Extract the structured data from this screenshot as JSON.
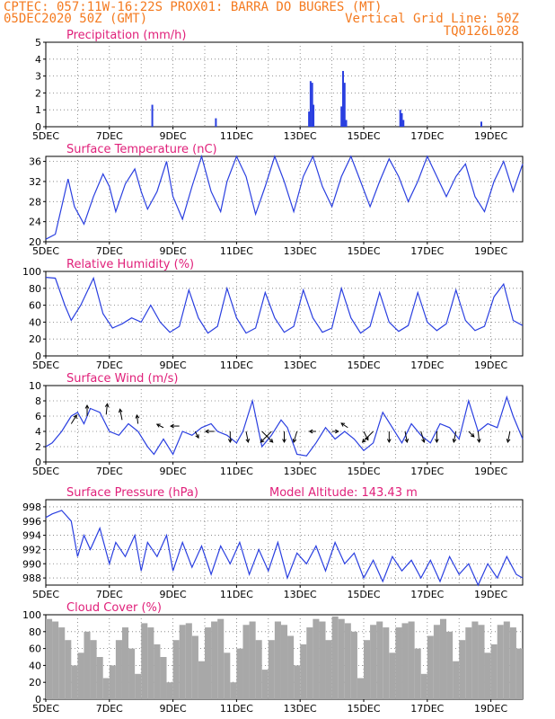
{
  "header": {
    "line1_left": "CPTEC:   057:11W-16:22S   PROX01: BARRA DO BUGRES (MT)",
    "line2_left": "05DEC2020 50Z (GMT)",
    "line2_right": "Vertical Grid Line: 50Z",
    "line3_right": "TQ0126L028"
  },
  "colors": {
    "header": "#f47a1f",
    "title": "#e0207a",
    "line": "#2a3fe0",
    "bar": "#2a3fe0",
    "cloud": "#a8a8a8",
    "grid": "#777777"
  },
  "x_tick_labels": [
    "5DEC",
    "7DEC",
    "9DEC",
    "11DEC",
    "13DEC",
    "15DEC",
    "17DEC",
    "19DEC"
  ],
  "chart_data": [
    {
      "type": "bar",
      "title": "Precipitation (mm/h)",
      "ylim": [
        0,
        5
      ],
      "yticks": [
        0,
        1,
        2,
        3,
        4,
        5
      ],
      "xlim": [
        5,
        20
      ],
      "bars": [
        {
          "x": 8.35,
          "y": 1.3
        },
        {
          "x": 10.35,
          "y": 0.5
        },
        {
          "x": 13.28,
          "y": 0.9
        },
        {
          "x": 13.33,
          "y": 2.7
        },
        {
          "x": 13.38,
          "y": 2.6
        },
        {
          "x": 13.42,
          "y": 1.3
        },
        {
          "x": 14.3,
          "y": 1.2
        },
        {
          "x": 14.35,
          "y": 3.3
        },
        {
          "x": 14.4,
          "y": 2.6
        },
        {
          "x": 14.45,
          "y": 0.4
        },
        {
          "x": 16.15,
          "y": 1.0
        },
        {
          "x": 16.2,
          "y": 0.8
        },
        {
          "x": 16.25,
          "y": 0.4
        },
        {
          "x": 18.7,
          "y": 0.3
        }
      ]
    },
    {
      "type": "line",
      "title": "Surface Temperature (nC)",
      "ylim": [
        20,
        37
      ],
      "yticks": [
        20,
        24,
        28,
        32,
        36
      ],
      "xlim": [
        5,
        20
      ],
      "x": [
        5.0,
        5.3,
        5.5,
        5.7,
        5.9,
        6.2,
        6.5,
        6.8,
        7.0,
        7.2,
        7.5,
        7.8,
        8.0,
        8.2,
        8.5,
        8.8,
        9.0,
        9.3,
        9.6,
        9.9,
        10.2,
        10.5,
        10.7,
        11.0,
        11.3,
        11.6,
        11.9,
        12.2,
        12.5,
        12.8,
        13.1,
        13.4,
        13.7,
        14.0,
        14.3,
        14.6,
        14.9,
        15.2,
        15.5,
        15.8,
        16.1,
        16.4,
        16.7,
        17.0,
        17.3,
        17.6,
        17.9,
        18.2,
        18.5,
        18.8,
        19.1,
        19.4,
        19.7,
        20.0
      ],
      "y": [
        20.5,
        21.5,
        27,
        32.5,
        27,
        23.5,
        29,
        33.5,
        31,
        26,
        31.5,
        34.5,
        30,
        26.5,
        30,
        36,
        29,
        24.5,
        31,
        37,
        30,
        26,
        32,
        37,
        33,
        25.5,
        31,
        37,
        32,
        26,
        33,
        37,
        31,
        27,
        33,
        37,
        32,
        27,
        32,
        36.5,
        33,
        28,
        32,
        37,
        33,
        29,
        33,
        35.5,
        29,
        26,
        32,
        36,
        30,
        35.5
      ]
    },
    {
      "type": "line",
      "title": "Relative Humidity (%)",
      "ylim": [
        0,
        100
      ],
      "yticks": [
        0,
        20,
        40,
        60,
        80,
        100
      ],
      "xlim": [
        5,
        20
      ],
      "x": [
        5.0,
        5.3,
        5.6,
        5.8,
        6.1,
        6.5,
        6.8,
        7.1,
        7.4,
        7.7,
        8.0,
        8.3,
        8.6,
        8.9,
        9.2,
        9.5,
        9.8,
        10.1,
        10.4,
        10.7,
        11.0,
        11.3,
        11.6,
        11.9,
        12.2,
        12.5,
        12.8,
        13.1,
        13.4,
        13.7,
        14.0,
        14.3,
        14.6,
        14.9,
        15.2,
        15.5,
        15.8,
        16.1,
        16.4,
        16.7,
        17.0,
        17.3,
        17.6,
        17.9,
        18.2,
        18.5,
        18.8,
        19.1,
        19.4,
        19.7,
        20.0
      ],
      "y": [
        93,
        92,
        60,
        42,
        60,
        92,
        50,
        33,
        38,
        45,
        40,
        60,
        40,
        28,
        35,
        78,
        45,
        27,
        35,
        80,
        45,
        27,
        33,
        75,
        45,
        28,
        35,
        78,
        45,
        28,
        33,
        80,
        45,
        27,
        35,
        75,
        40,
        29,
        36,
        75,
        40,
        30,
        38,
        78,
        42,
        30,
        35,
        70,
        85,
        42,
        36
      ]
    },
    {
      "type": "line",
      "title": "Surface Wind (m/s)",
      "ylim": [
        0,
        10
      ],
      "yticks": [
        0,
        2,
        4,
        6,
        8,
        10
      ],
      "xlim": [
        5,
        20
      ],
      "x": [
        5.0,
        5.2,
        5.5,
        5.8,
        6.0,
        6.2,
        6.4,
        6.7,
        7.0,
        7.3,
        7.6,
        7.9,
        8.2,
        8.4,
        8.7,
        9.0,
        9.3,
        9.6,
        9.9,
        10.2,
        10.4,
        10.7,
        11.0,
        11.2,
        11.5,
        11.8,
        12.1,
        12.4,
        12.6,
        12.9,
        13.2,
        13.5,
        13.8,
        14.1,
        14.4,
        14.7,
        15.0,
        15.3,
        15.6,
        15.9,
        16.2,
        16.5,
        16.8,
        17.1,
        17.4,
        17.7,
        18.0,
        18.3,
        18.6,
        18.9,
        19.2,
        19.5,
        19.7,
        20.0
      ],
      "y": [
        2.0,
        2.5,
        4.0,
        6.0,
        6.5,
        5.0,
        7.0,
        6.5,
        4.0,
        3.5,
        5.0,
        4.0,
        2.0,
        1.0,
        3.0,
        1.0,
        4.0,
        3.5,
        4.5,
        5.0,
        4.0,
        3.5,
        2.5,
        4.0,
        8.0,
        2.0,
        3.5,
        5.5,
        4.5,
        1.0,
        0.8,
        2.5,
        4.5,
        3.0,
        4.0,
        3.0,
        1.5,
        2.5,
        6.5,
        4.5,
        2.5,
        5.0,
        3.5,
        2.5,
        5.0,
        4.5,
        3.0,
        8.0,
        4.0,
        5.0,
        4.5,
        8.5,
        6.0,
        3.0
      ],
      "wind_vectors": [
        {
          "x": 5.8,
          "y": 5.0,
          "u": 0.5,
          "v": 0.8
        },
        {
          "x": 6.3,
          "y": 6.0,
          "u": 0.0,
          "v": 1.0
        },
        {
          "x": 6.9,
          "y": 6.2,
          "u": 0.1,
          "v": 1.0
        },
        {
          "x": 7.4,
          "y": 5.5,
          "u": -0.2,
          "v": 1.0
        },
        {
          "x": 7.9,
          "y": 5.0,
          "u": -0.1,
          "v": 0.8
        },
        {
          "x": 8.7,
          "y": 4.5,
          "u": -0.6,
          "v": 0.3
        },
        {
          "x": 9.2,
          "y": 4.7,
          "u": -0.8,
          "v": 0.0
        },
        {
          "x": 9.7,
          "y": 4.0,
          "u": 0.3,
          "v": -0.6
        },
        {
          "x": 10.3,
          "y": 4.0,
          "u": -0.8,
          "v": 0.0
        },
        {
          "x": 10.8,
          "y": 4.0,
          "u": 0.0,
          "v": -1.0
        },
        {
          "x": 11.3,
          "y": 4.0,
          "u": 0.2,
          "v": -1.0
        },
        {
          "x": 11.8,
          "y": 4.0,
          "u": 1.0,
          "v": -1.0
        },
        {
          "x": 12.1,
          "y": 4.0,
          "u": -1.0,
          "v": -1.0
        },
        {
          "x": 12.5,
          "y": 4.0,
          "u": 0.0,
          "v": -1.0
        },
        {
          "x": 12.9,
          "y": 4.0,
          "u": -0.3,
          "v": -1.0
        },
        {
          "x": 13.5,
          "y": 4.0,
          "u": -0.6,
          "v": 0.0
        },
        {
          "x": 14.0,
          "y": 4.0,
          "u": 0.6,
          "v": 0.0
        },
        {
          "x": 14.5,
          "y": 4.5,
          "u": -0.6,
          "v": 0.4
        },
        {
          "x": 15.0,
          "y": 4.0,
          "u": 0.4,
          "v": -0.8
        },
        {
          "x": 15.3,
          "y": 4.0,
          "u": -1.0,
          "v": -1.0
        },
        {
          "x": 15.8,
          "y": 4.0,
          "u": 0.0,
          "v": -1.0
        },
        {
          "x": 16.3,
          "y": 4.0,
          "u": 0.2,
          "v": -1.0
        },
        {
          "x": 16.8,
          "y": 4.0,
          "u": 0.3,
          "v": -1.0
        },
        {
          "x": 17.3,
          "y": 4.0,
          "u": 0.0,
          "v": -1.0
        },
        {
          "x": 17.9,
          "y": 4.0,
          "u": -0.2,
          "v": -1.0
        },
        {
          "x": 18.3,
          "y": 4.0,
          "u": 0.5,
          "v": -0.5
        },
        {
          "x": 18.6,
          "y": 4.0,
          "u": 0.1,
          "v": -1.0
        },
        {
          "x": 19.6,
          "y": 4.0,
          "u": -0.2,
          "v": -1.0
        }
      ]
    },
    {
      "type": "line",
      "title": "Surface Pressure (hPa)",
      "annotation": "Model Altitude: 143.43 m",
      "ylim": [
        987,
        999
      ],
      "yticks": [
        988,
        990,
        992,
        994,
        996,
        998
      ],
      "xlim": [
        5,
        20
      ],
      "x": [
        5.0,
        5.2,
        5.5,
        5.8,
        6.0,
        6.2,
        6.4,
        6.7,
        7.0,
        7.2,
        7.5,
        7.8,
        8.0,
        8.2,
        8.5,
        8.8,
        9.0,
        9.3,
        9.6,
        9.9,
        10.2,
        10.5,
        10.8,
        11.1,
        11.4,
        11.7,
        12.0,
        12.3,
        12.6,
        12.9,
        13.2,
        13.5,
        13.8,
        14.1,
        14.4,
        14.7,
        15.0,
        15.3,
        15.6,
        15.9,
        16.2,
        16.5,
        16.8,
        17.1,
        17.4,
        17.7,
        18.0,
        18.3,
        18.6,
        18.9,
        19.2,
        19.5,
        19.8,
        20.0
      ],
      "y": [
        996.5,
        997,
        997.5,
        996,
        991,
        994,
        992,
        995,
        990,
        993,
        991,
        994,
        989,
        993,
        991,
        994,
        989,
        993,
        989.5,
        992.5,
        988.5,
        992.5,
        990,
        993,
        988.5,
        992,
        989,
        993,
        988,
        991.5,
        990,
        992.5,
        989,
        993,
        990,
        991.5,
        988,
        990.5,
        987.5,
        991,
        989,
        990.5,
        988,
        990.5,
        987.5,
        991,
        988.5,
        990,
        987,
        990,
        988,
        991,
        988.5,
        988
      ]
    },
    {
      "type": "bar",
      "title": "Cloud Cover (%)",
      "ylim": [
        0,
        100
      ],
      "yticks": [
        0,
        20,
        40,
        60,
        80,
        100
      ],
      "xlim": [
        5,
        20
      ],
      "x": [
        5.0,
        5.2,
        5.4,
        5.6,
        5.8,
        6.0,
        6.2,
        6.4,
        6.6,
        6.8,
        7.0,
        7.2,
        7.4,
        7.6,
        7.8,
        8.0,
        8.2,
        8.4,
        8.6,
        8.8,
        9.0,
        9.2,
        9.4,
        9.6,
        9.8,
        10.0,
        10.2,
        10.4,
        10.6,
        10.8,
        11.0,
        11.2,
        11.4,
        11.6,
        11.8,
        12.0,
        12.2,
        12.4,
        12.6,
        12.8,
        13.0,
        13.2,
        13.4,
        13.6,
        13.8,
        14.0,
        14.2,
        14.4,
        14.6,
        14.8,
        15.0,
        15.2,
        15.4,
        15.6,
        15.8,
        16.0,
        16.2,
        16.4,
        16.6,
        16.8,
        17.0,
        17.2,
        17.4,
        17.6,
        17.8,
        18.0,
        18.2,
        18.4,
        18.6,
        18.8,
        19.0,
        19.2,
        19.4,
        19.6,
        19.8
      ],
      "values": [
        95,
        92,
        85,
        70,
        40,
        55,
        80,
        70,
        50,
        25,
        40,
        70,
        85,
        60,
        30,
        90,
        85,
        65,
        50,
        20,
        70,
        88,
        90,
        75,
        45,
        85,
        92,
        95,
        55,
        20,
        60,
        88,
        92,
        70,
        35,
        70,
        92,
        88,
        75,
        40,
        65,
        85,
        95,
        92,
        70,
        98,
        95,
        90,
        80,
        25,
        70,
        88,
        92,
        85,
        55,
        85,
        90,
        92,
        60,
        30,
        75,
        88,
        95,
        80,
        45,
        70,
        85,
        92,
        88,
        55,
        65,
        88,
        92,
        85,
        60
      ]
    }
  ]
}
